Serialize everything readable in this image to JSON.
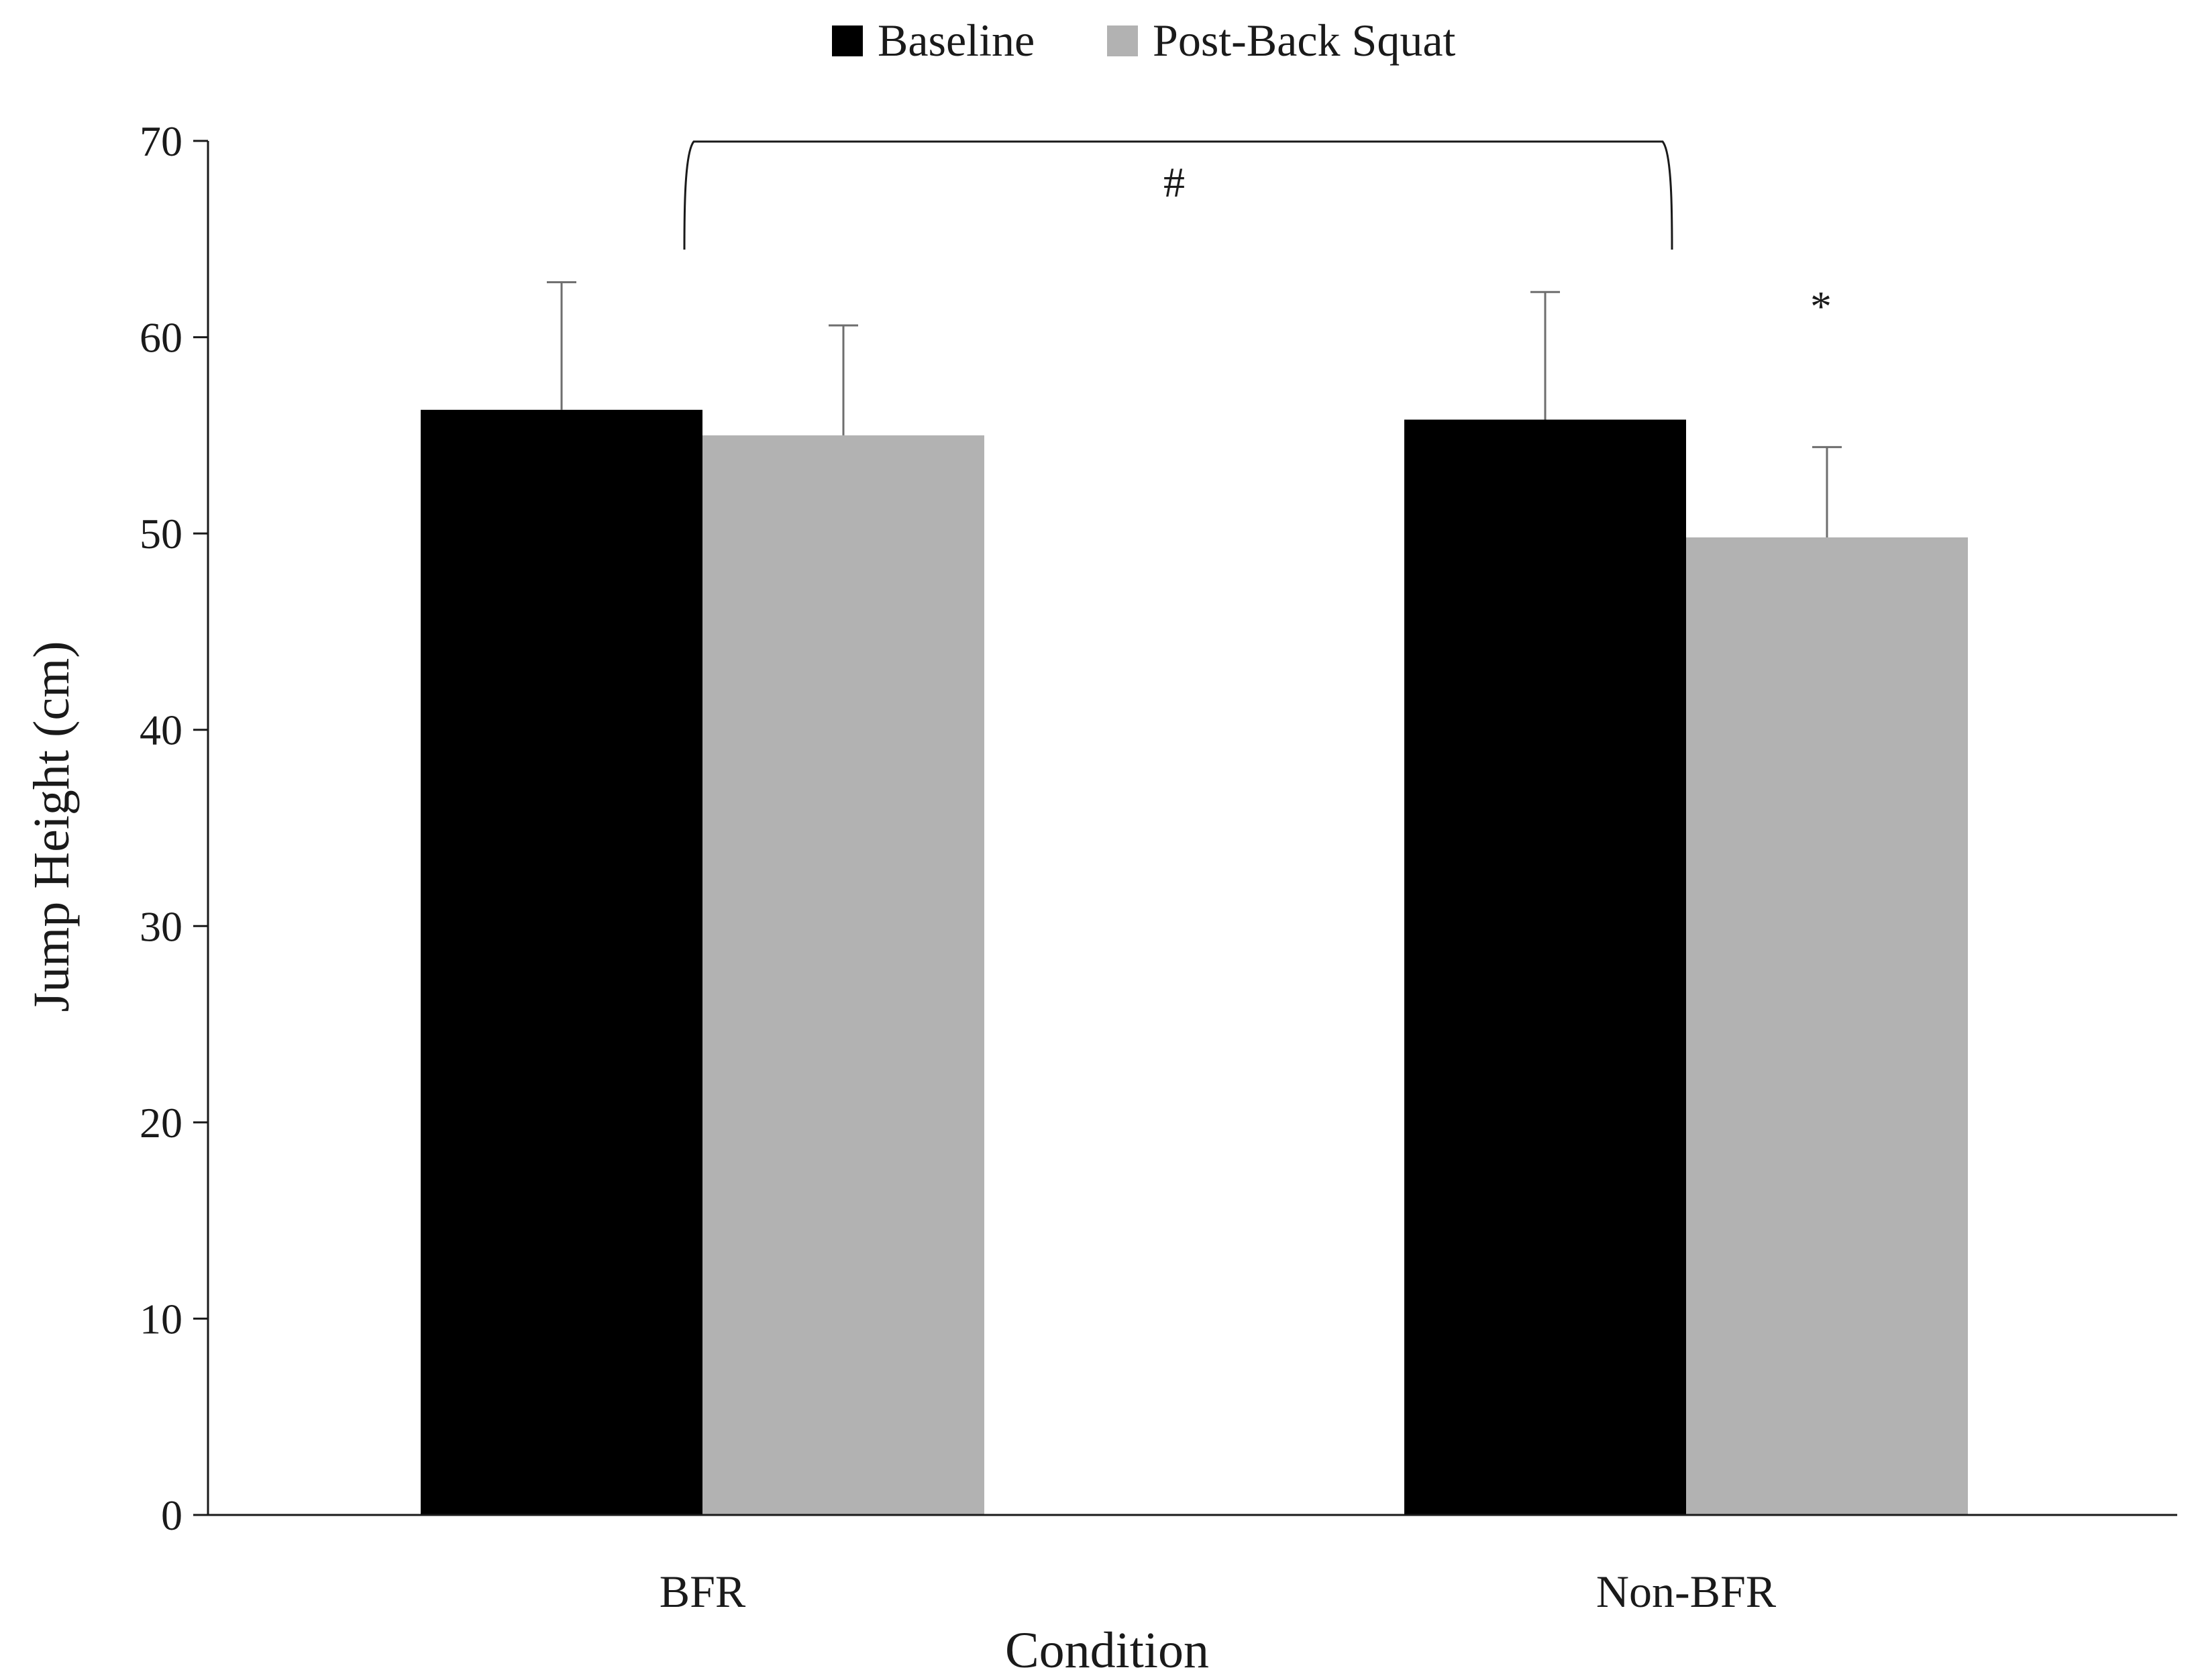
{
  "chart_data": {
    "type": "bar",
    "categories": [
      "BFR",
      "Non-BFR"
    ],
    "series": [
      {
        "name": "Baseline",
        "color": "#000000",
        "values": [
          56.3,
          55.8
        ],
        "error_upper": [
          6.5,
          6.5
        ]
      },
      {
        "name": "Post-Back Squat",
        "color": "#b2b2b2",
        "values": [
          55.0,
          49.8
        ],
        "error_upper": [
          5.6,
          4.6
        ]
      }
    ],
    "xlabel": "Condition",
    "ylabel": "Jump Height (cm)",
    "ylim": [
      0,
      70
    ],
    "yticks": [
      0,
      10,
      20,
      30,
      40,
      50,
      60,
      70
    ],
    "yticklabels": [
      "0",
      "10",
      "20",
      "30",
      "40",
      "50",
      "60",
      "70"
    ],
    "grid": false,
    "legend_position": "top-center",
    "annotations": {
      "bracket_symbol": "#",
      "significance_symbol": "*"
    }
  }
}
